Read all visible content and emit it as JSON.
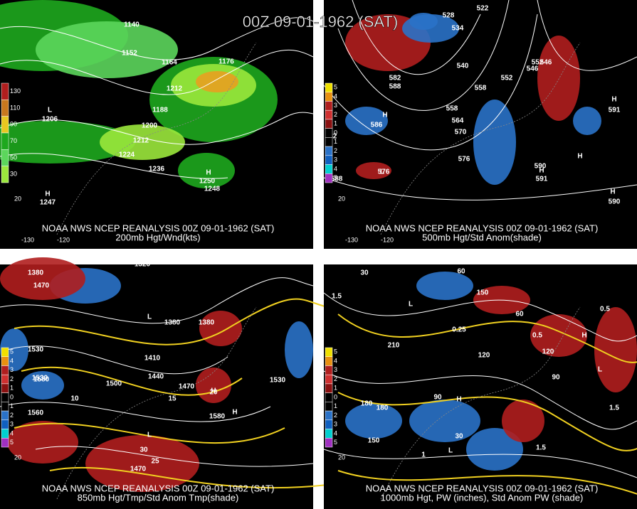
{
  "title": "00Z 09-01-1962 (SAT)",
  "panels": [
    {
      "caption": [
        "NOAA NWS NCEP REANALYSIS 00Z 09-01-1962 (SAT)",
        "200mb Hgt/Wnd(kts)"
      ],
      "colorbar": [
        "130",
        "110",
        "90",
        "70",
        "50",
        "30"
      ],
      "axis_labels": [
        "-130",
        "-120",
        "20"
      ],
      "labels": [
        "1140",
        "1152",
        "1164",
        "1176",
        "1188",
        "1200",
        "1212",
        "1212",
        "1224",
        "1236",
        "1248",
        "L",
        "1206",
        "H",
        "1250",
        "H",
        "1247"
      ]
    },
    {
      "caption": [
        "NOAA NWS NCEP REANALYSIS 00Z 09-01-1962 (SAT)",
        "500mb Hgt/Std Anom(shade)"
      ],
      "colorbar": [
        "5",
        "4",
        "3",
        "2",
        "1",
        "0",
        "1",
        "2",
        "3",
        "4",
        "5"
      ],
      "axis_labels": [
        "-130",
        "-120",
        "20"
      ],
      "labels": [
        "522",
        "528",
        "534",
        "540",
        "546",
        "552",
        "558",
        "546",
        "552",
        "558",
        "564",
        "570",
        "576",
        "582",
        "588",
        "582",
        "588",
        "H",
        "586",
        "L",
        "576",
        "H",
        "590",
        "H",
        "591",
        "H",
        "591",
        "H",
        "590"
      ]
    },
    {
      "caption": [
        "NOAA NWS NCEP REANALYSIS 00Z 09-01-1962 (SAT)",
        "850mb Hgt/Tmp/Std Anom Tmp(shade)"
      ],
      "colorbar": [
        "5",
        "4",
        "3",
        "2",
        "1",
        "0",
        "1",
        "2",
        "3",
        "4",
        "5"
      ],
      "axis_labels": [
        "20"
      ],
      "labels": [
        "1380",
        "1320",
        "1470",
        "1380",
        "1380",
        "1410",
        "1440",
        "1470",
        "1500",
        "1530",
        "1530",
        "1530",
        "1560",
        "1580",
        "1580",
        "L",
        "H",
        "L",
        "H",
        "10",
        "15",
        "20",
        "25",
        "30",
        "1470"
      ]
    },
    {
      "caption": [
        "NOAA NWS NCEP REANALYSIS 00Z 09-01-1962 (SAT)",
        "1000mb Hgt, PW (inches), Std Anom PW (shade)"
      ],
      "colorbar": [
        "5",
        "4",
        "3",
        "2",
        "1",
        "0",
        "1",
        "2",
        "3",
        "4",
        "5"
      ],
      "axis_labels": [
        "20"
      ],
      "labels": [
        "30",
        "60",
        "90",
        "120",
        "150",
        "180",
        "210",
        "180",
        "150",
        "120",
        "90",
        "60",
        "30",
        "1.5",
        "0.25",
        "0.5",
        "1.5",
        "1",
        "1.5",
        "0.5",
        "L",
        "H",
        "L",
        "H",
        "L"
      ]
    }
  ]
}
